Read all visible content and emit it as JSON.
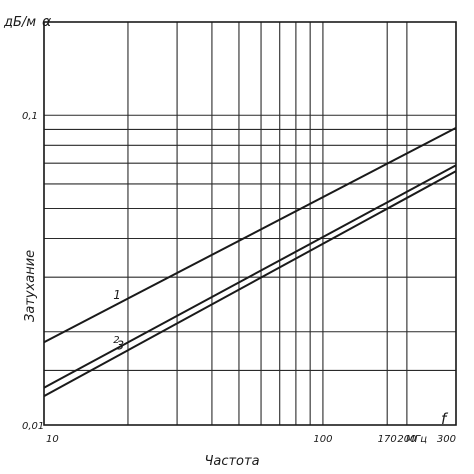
{
  "chart_data": {
    "type": "line",
    "title": "",
    "y_unit": "дБ/м",
    "y_symbol": "α",
    "x_symbol": "f",
    "ylabel": "Затухание",
    "xlabel": "Частота",
    "x_scale": "log",
    "y_scale": "log",
    "xlim": [
      10,
      300
    ],
    "ylim": [
      0.01,
      0.2
    ],
    "x_ticks": [
      {
        "value": 10,
        "label": "10"
      },
      {
        "value": 100,
        "label": "100"
      },
      {
        "value": 170,
        "label": "170"
      },
      {
        "value": 200,
        "label": "200"
      },
      {
        "value": 300,
        "label": "300"
      }
    ],
    "x_unit_label": "МГц",
    "y_ticks": [
      {
        "value": 0.01,
        "label": "0,01"
      },
      {
        "value": 0.1,
        "label": "0,1"
      }
    ],
    "x_grid": [
      10,
      20,
      30,
      40,
      50,
      60,
      70,
      80,
      90,
      100,
      170,
      200,
      300
    ],
    "y_grid": [
      0.01,
      0.015,
      0.02,
      0.03,
      0.04,
      0.05,
      0.06,
      0.07,
      0.08,
      0.09,
      0.1
    ],
    "grid": true,
    "series": [
      {
        "name": "1",
        "x": [
          10,
          300
        ],
        "y": [
          0.0185,
          0.091
        ]
      },
      {
        "name": "2",
        "x": [
          10,
          300
        ],
        "y": [
          0.0132,
          0.069
        ]
      },
      {
        "name": "3",
        "x": [
          10,
          300
        ],
        "y": [
          0.0124,
          0.066
        ]
      }
    ],
    "series_label_at_x": [
      18,
      18,
      18.5
    ]
  }
}
